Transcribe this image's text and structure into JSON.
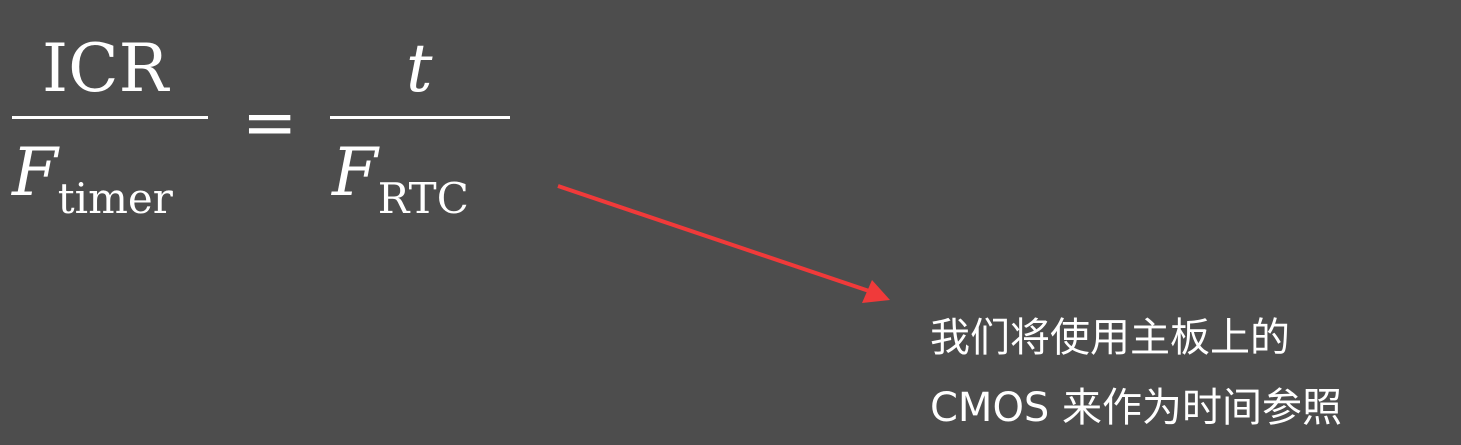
{
  "equation": {
    "left_numerator": "ICR",
    "left_denominator_base": "F",
    "left_denominator_sub": "timer",
    "equals": "=",
    "right_numerator": "t",
    "right_denominator_base": "F",
    "right_denominator_sub": "RTC"
  },
  "annotation": {
    "line1": "我们将使用主板上的",
    "line2": "CMOS 来作为时间参照",
    "arrow_color": "#f03a3a"
  }
}
